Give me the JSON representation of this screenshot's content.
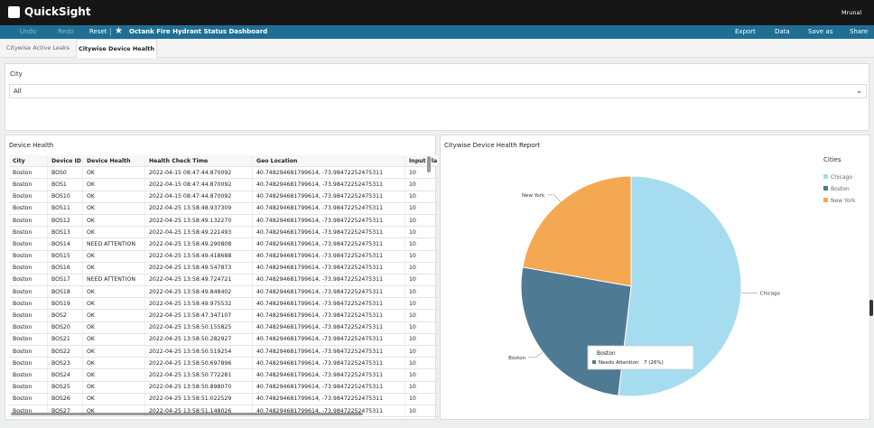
{
  "header": {
    "logo": "QuickSight",
    "user": "Mrunal"
  },
  "toolbar": {
    "undo": "Undo",
    "redo": "Redo",
    "reset": "Reset",
    "dashboard_title": "Octank Fire Hydrant Status Dashboard",
    "export": "Export",
    "data": "Data",
    "save_as": "Save as",
    "share": "Share"
  },
  "tabs": [
    "Citywise Active Leaks",
    "Citywise Device Health"
  ],
  "filter": {
    "label": "City",
    "value": "All"
  },
  "table": {
    "title": "Device Health",
    "columns": [
      "City",
      "Device ID",
      "Device Health",
      "Health Check Time",
      "Geo Location",
      "Input Fla"
    ],
    "rows": [
      [
        "Boston",
        "BOS0",
        "OK",
        "2022-04-15 08:47:44.870092",
        "40.748294681799614, -73.98472252475311",
        "10"
      ],
      [
        "Boston",
        "BOS1",
        "OK",
        "2022-04-15 08:47:44.870092",
        "40.748294681799614, -73.98472252475311",
        "10"
      ],
      [
        "Boston",
        "BOS10",
        "OK",
        "2022-04-15 08:47:44.870092",
        "40.748294681799614, -73.98472252475311",
        "10"
      ],
      [
        "Boston",
        "BOS11",
        "OK",
        "2022-04-25 13:58:48.937309",
        "40.748294681799614, -73.98472252475311",
        "10"
      ],
      [
        "Boston",
        "BOS12",
        "OK",
        "2022-04-25 13:58:49.132270",
        "40.748294681799614, -73.98472252475311",
        "10"
      ],
      [
        "Boston",
        "BOS13",
        "OK",
        "2022-04-25 13:58:49.221493",
        "40.748294681799614, -73.98472252475311",
        "10"
      ],
      [
        "Boston",
        "BOS14",
        "NEED ATTENTION",
        "2022-04-25 13:58:49.290808",
        "40.748294681799614, -73.98472252475311",
        "10"
      ],
      [
        "Boston",
        "BOS15",
        "OK",
        "2022-04-25 13:58:49.418688",
        "40.748294681799614, -73.98472252475311",
        "10"
      ],
      [
        "Boston",
        "BOS16",
        "OK",
        "2022-04-25 13:58:49.547873",
        "40.748294681799614, -73.98472252475311",
        "10"
      ],
      [
        "Boston",
        "BOS17",
        "NEED ATTENTION",
        "2022-04-25 13:58:49.724721",
        "40.748294681799614, -73.98472252475311",
        "10"
      ],
      [
        "Boston",
        "BOS18",
        "OK",
        "2022-04-25 13:58:49.848402",
        "40.748294681799614, -73.98472252475311",
        "10"
      ],
      [
        "Boston",
        "BOS19",
        "OK",
        "2022-04-25 13:58:49.975532",
        "40.748294681799614, -73.98472252475311",
        "10"
      ],
      [
        "Boston",
        "BOS2",
        "OK",
        "2022-04-25 13:58:47.347107",
        "40.748294681799614, -73.98472252475311",
        "10"
      ],
      [
        "Boston",
        "BOS20",
        "OK",
        "2022-04-25 13:58:50.155825",
        "40.748294681799614, -73.98472252475311",
        "10"
      ],
      [
        "Boston",
        "BOS21",
        "OK",
        "2022-04-25 13:58:50.282927",
        "40.748294681799614, -73.98472252475311",
        "10"
      ],
      [
        "Boston",
        "BOS22",
        "OK",
        "2022-04-25 13:58:50.519254",
        "40.748294681799614, -73.98472252475311",
        "10"
      ],
      [
        "Boston",
        "BOS23",
        "OK",
        "2022-04-25 13:58:50.697896",
        "40.748294681799614, -73.98472252475311",
        "10"
      ],
      [
        "Boston",
        "BOS24",
        "OK",
        "2022-04-25 13:58:50.772281",
        "40.748294681799614, -73.98472252475311",
        "10"
      ],
      [
        "Boston",
        "BOS25",
        "OK",
        "2022-04-25 13:58:50.898070",
        "40.748294681799614, -73.98472252475311",
        "10"
      ],
      [
        "Boston",
        "BOS26",
        "OK",
        "2022-04-25 13:58:51.022529",
        "40.748294681799614, -73.98472252475311",
        "10"
      ],
      [
        "Boston",
        "BOS27",
        "OK",
        "2022-04-25 13:58:51.148026",
        "40.748294681799614, -73.98472252475311",
        "10"
      ]
    ]
  },
  "chart_data": {
    "type": "pie",
    "title": "Citywise Device Health Report",
    "legend_title": "Cities",
    "legend": "right",
    "categories": [
      "Chicago",
      "Boston",
      "New York"
    ],
    "values": [
      14,
      7,
      6
    ],
    "colors": [
      "#a6dcef",
      "#4f7a94",
      "#f5a852"
    ],
    "tooltip": {
      "title": "Boston",
      "label": "Needs Attention",
      "value": "7 (26%)"
    }
  }
}
